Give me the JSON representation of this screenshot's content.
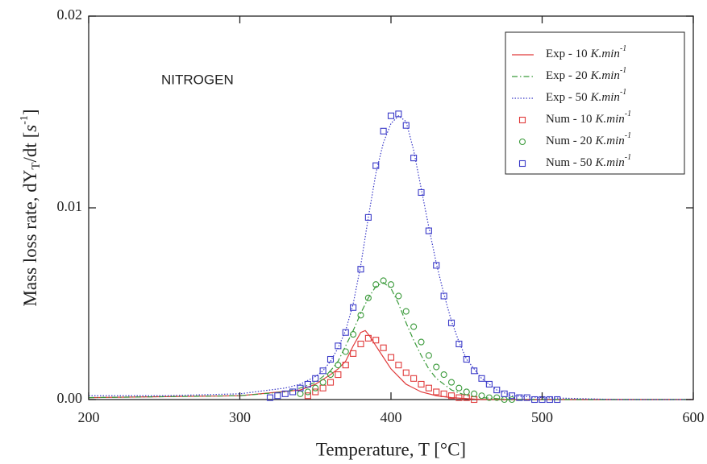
{
  "chart_data": {
    "type": "line",
    "annotation": "NITROGEN",
    "xlabel": "Temperature, T [°C]",
    "ylabel": {
      "text": "Mass loss rate, dY",
      "sub": "T",
      "mid": "/dt [",
      "unit": "s",
      "sup": "-1",
      "end": "]"
    },
    "legend_unit": "K.min",
    "legend_unit_exp": "-1",
    "legend": "upper right",
    "xlim": [
      200,
      600
    ],
    "ylim": [
      0,
      0.02
    ],
    "xticks": [
      200,
      300,
      400,
      500,
      600
    ],
    "yticks": [
      {
        "value": 0,
        "label": "0.00"
      },
      {
        "value": 0.01,
        "label": "0.01"
      },
      {
        "value": 0.02,
        "label": "0.02"
      }
    ],
    "series": [
      {
        "name": "Exp - 10",
        "color": "#e03a3a",
        "style": "solid",
        "x": [
          200,
          300,
          340,
          350,
          360,
          365,
          370,
          375,
          380,
          383,
          386,
          390,
          395,
          400,
          405,
          410,
          420,
          430,
          440,
          460,
          600
        ],
        "values": [
          0.0001,
          0.0002,
          0.0005,
          0.0008,
          0.0013,
          0.0016,
          0.002,
          0.0028,
          0.0035,
          0.0036,
          0.0033,
          0.0028,
          0.0022,
          0.0016,
          0.0012,
          0.0008,
          0.0004,
          0.0002,
          0.0001,
          0,
          0
        ]
      },
      {
        "name": "Exp - 20",
        "color": "#3a9a3a",
        "style": "dashdot",
        "x": [
          200,
          300,
          330,
          340,
          350,
          360,
          365,
          370,
          375,
          380,
          385,
          390,
          395,
          400,
          405,
          410,
          415,
          420,
          425,
          430,
          440,
          450,
          460,
          480,
          600
        ],
        "values": [
          0.0001,
          0.0002,
          0.0004,
          0.0006,
          0.0009,
          0.0015,
          0.002,
          0.0028,
          0.0036,
          0.0045,
          0.0053,
          0.0059,
          0.0061,
          0.0058,
          0.005,
          0.004,
          0.0031,
          0.0023,
          0.0016,
          0.0011,
          0.0005,
          0.0002,
          0.0001,
          0,
          0
        ]
      },
      {
        "name": "Exp - 50",
        "color": "#3a3ac8",
        "style": "dot",
        "x": [
          200,
          250,
          300,
          320,
          330,
          340,
          350,
          355,
          360,
          365,
          370,
          375,
          380,
          385,
          390,
          395,
          400,
          405,
          410,
          415,
          420,
          425,
          430,
          435,
          440,
          445,
          450,
          460,
          470,
          480,
          500,
          550,
          600
        ],
        "values": [
          0.0002,
          0.0002,
          0.0003,
          0.0005,
          0.0006,
          0.0008,
          0.0012,
          0.0015,
          0.002,
          0.0027,
          0.0036,
          0.005,
          0.007,
          0.0095,
          0.0118,
          0.0134,
          0.0144,
          0.0148,
          0.0145,
          0.013,
          0.011,
          0.009,
          0.0071,
          0.0055,
          0.0041,
          0.003,
          0.0021,
          0.0011,
          0.0005,
          0.0002,
          0.0001,
          0,
          0
        ]
      },
      {
        "name": "Num - 10",
        "color": "#e03a3a",
        "marker": "square",
        "x": [
          345,
          350,
          355,
          360,
          365,
          370,
          375,
          380,
          385,
          390,
          395,
          400,
          405,
          410,
          415,
          420,
          425,
          430,
          435,
          440,
          445,
          450,
          455
        ],
        "values": [
          0.0002,
          0.0004,
          0.0006,
          0.0009,
          0.0013,
          0.0018,
          0.0024,
          0.0029,
          0.0032,
          0.0031,
          0.0027,
          0.0022,
          0.0018,
          0.0014,
          0.0011,
          0.0008,
          0.0006,
          0.0004,
          0.0003,
          0.0002,
          0.0001,
          0.0001,
          0
        ]
      },
      {
        "name": "Num - 20",
        "color": "#3a9a3a",
        "marker": "circle",
        "x": [
          340,
          345,
          350,
          355,
          360,
          365,
          370,
          375,
          380,
          385,
          390,
          395,
          400,
          405,
          410,
          415,
          420,
          425,
          430,
          435,
          440,
          445,
          450,
          455,
          460,
          465,
          470,
          475,
          480
        ],
        "values": [
          0.0003,
          0.0004,
          0.0006,
          0.0009,
          0.0013,
          0.0018,
          0.0025,
          0.0034,
          0.0044,
          0.0053,
          0.006,
          0.0062,
          0.006,
          0.0054,
          0.0046,
          0.0038,
          0.003,
          0.0023,
          0.0017,
          0.0013,
          0.0009,
          0.0006,
          0.0004,
          0.0003,
          0.0002,
          0.0001,
          0.0001,
          0,
          0
        ]
      },
      {
        "name": "Num - 50",
        "color": "#3a3ac8",
        "marker": "square",
        "x": [
          320,
          325,
          330,
          335,
          340,
          345,
          350,
          355,
          360,
          365,
          370,
          375,
          380,
          385,
          390,
          395,
          400,
          405,
          410,
          415,
          420,
          425,
          430,
          435,
          440,
          445,
          450,
          455,
          460,
          465,
          470,
          475,
          480,
          485,
          490,
          495,
          500,
          505,
          510
        ],
        "values": [
          0.0001,
          0.0002,
          0.0003,
          0.0004,
          0.0006,
          0.0008,
          0.0011,
          0.0015,
          0.0021,
          0.0028,
          0.0035,
          0.0048,
          0.0068,
          0.0095,
          0.0122,
          0.014,
          0.0148,
          0.0149,
          0.0143,
          0.0126,
          0.0108,
          0.0088,
          0.007,
          0.0054,
          0.004,
          0.0029,
          0.0021,
          0.0015,
          0.0011,
          0.0008,
          0.0005,
          0.0003,
          0.0002,
          0.0001,
          0.0001,
          0,
          0,
          0,
          0
        ]
      }
    ]
  }
}
